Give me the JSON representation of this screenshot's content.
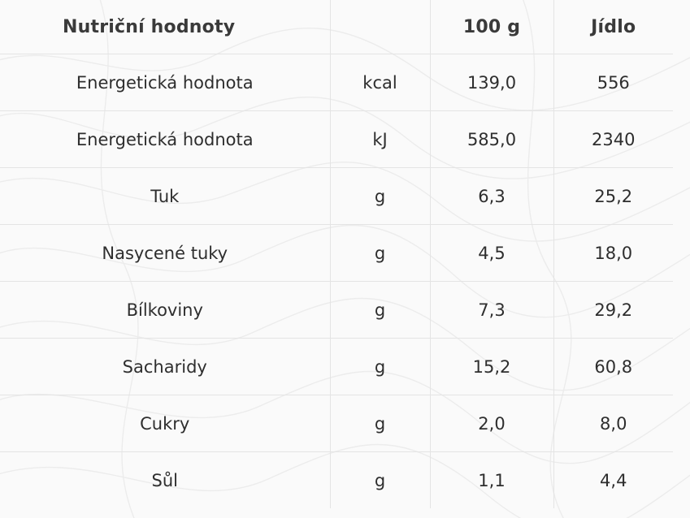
{
  "table": {
    "headers": {
      "name": "Nutriční hodnoty",
      "unit": "",
      "per_100g": "100 g",
      "per_meal": "Jídlo"
    },
    "rows": [
      {
        "name": "Energetická hodnota",
        "unit": "kcal",
        "per_100g": "139,0",
        "per_meal": "556"
      },
      {
        "name": "Energetická hodnota",
        "unit": "kJ",
        "per_100g": "585,0",
        "per_meal": "2340"
      },
      {
        "name": "Tuk",
        "unit": "g",
        "per_100g": "6,3",
        "per_meal": "25,2"
      },
      {
        "name": "Nasycené tuky",
        "unit": "g",
        "per_100g": "4,5",
        "per_meal": "18,0"
      },
      {
        "name": "Bílkoviny",
        "unit": "g",
        "per_100g": "7,3",
        "per_meal": "29,2"
      },
      {
        "name": "Sacharidy",
        "unit": "g",
        "per_100g": "15,2",
        "per_meal": "60,8"
      },
      {
        "name": "Cukry",
        "unit": "g",
        "per_100g": "2,0",
        "per_meal": "8,0"
      },
      {
        "name": "Sůl",
        "unit": "g",
        "per_100g": "1,1",
        "per_meal": "4,4"
      }
    ]
  },
  "colors": {
    "background": "#fafafa",
    "grid_line": "#e4e4e4",
    "text": "#2e2e2e",
    "header_text": "#3a3a3a"
  }
}
